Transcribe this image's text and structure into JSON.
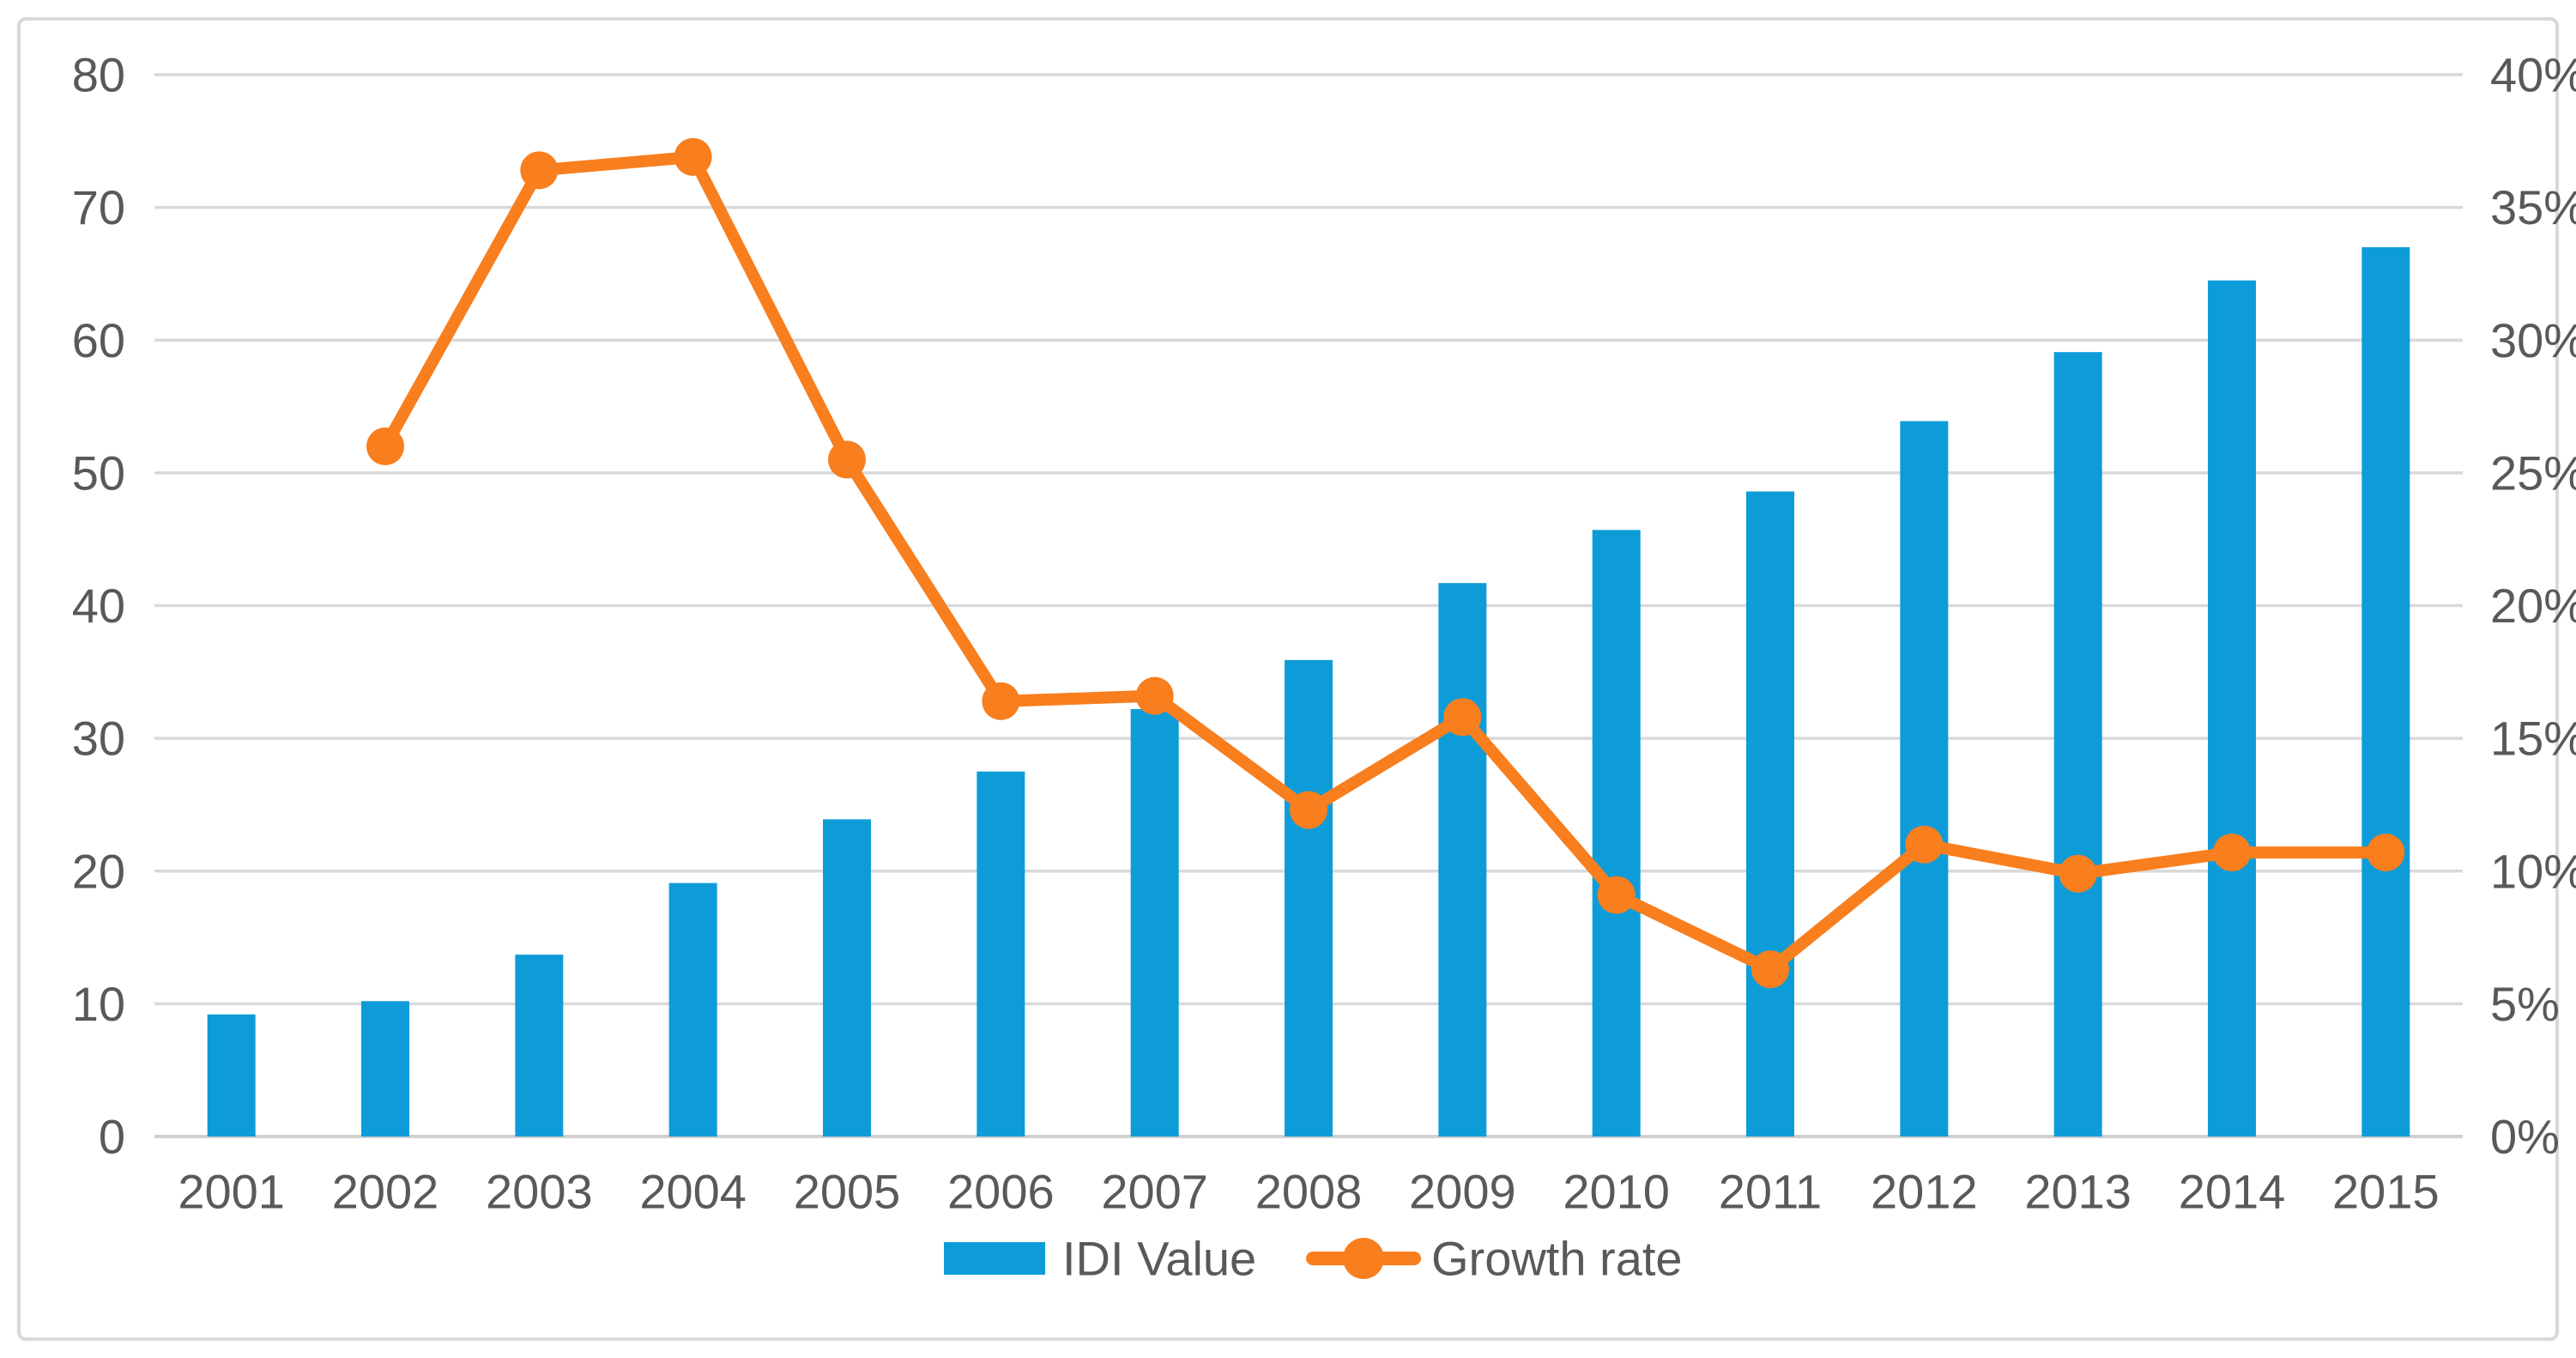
{
  "chart_data": {
    "type": "combo",
    "title": "",
    "subtitle": "",
    "categories": [
      "2001",
      "2002",
      "2003",
      "2004",
      "2005",
      "2006",
      "2007",
      "2008",
      "2009",
      "2010",
      "2011",
      "2012",
      "2013",
      "2014",
      "2015"
    ],
    "series": [
      {
        "name": "IDI Value",
        "type": "bar",
        "axis": "left",
        "values": [
          9.2,
          10.2,
          13.7,
          19.1,
          23.9,
          27.5,
          32.2,
          35.9,
          41.7,
          45.7,
          48.6,
          53.9,
          59.1,
          64.5,
          67.0
        ]
      },
      {
        "name": "Growth rate",
        "type": "line",
        "axis": "right",
        "values_percent": [
          null,
          26.0,
          36.4,
          36.9,
          25.5,
          16.4,
          16.6,
          12.3,
          15.8,
          9.1,
          6.3,
          11.0,
          9.9,
          10.7,
          10.7
        ]
      }
    ],
    "left_axis": {
      "min": 0,
      "max": 80,
      "step": 10,
      "tick_labels": [
        "0",
        "10",
        "20",
        "30",
        "40",
        "50",
        "60",
        "70",
        "80"
      ]
    },
    "right_axis": {
      "min": 0,
      "max": 40,
      "step": 5,
      "tick_labels": [
        "0%",
        "5%",
        "10%",
        "15%",
        "20%",
        "25%",
        "30%",
        "35%",
        "40%"
      ]
    },
    "grid": true,
    "legend_position": "bottom"
  },
  "colors": {
    "bar": "#0E9CD9",
    "line": "#F87E1E",
    "gridline": "#D9D9D9",
    "zero_line": "#D0D0D0",
    "text": "#595959",
    "frame_border": "#D9D9D9",
    "background": "#FFFFFF"
  }
}
